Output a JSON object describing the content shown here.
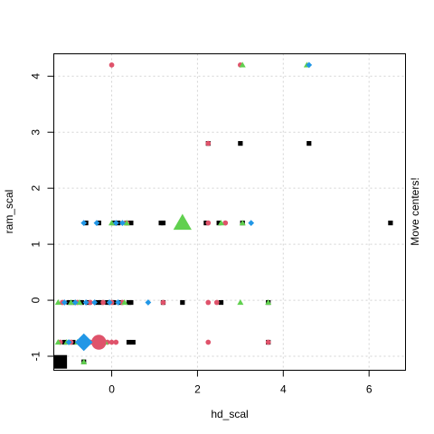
{
  "chart_data": {
    "type": "scatter",
    "xlabel": "hd_scal",
    "ylabel": "ram_scal",
    "xlim": [
      -1.35,
      6.85
    ],
    "ylim": [
      -1.25,
      4.4
    ],
    "xticks": [
      0,
      2,
      4,
      6
    ],
    "yticks": [
      -1,
      0,
      1,
      2,
      3,
      4
    ],
    "xtick_labels": [
      "0",
      "2",
      "4",
      "6"
    ],
    "ytick_labels": [
      "-1",
      "0",
      "1",
      "2",
      "3",
      "4"
    ],
    "grid": true,
    "side_label": "Move centers!",
    "series": [
      {
        "color": "#000000",
        "marker": "square",
        "points": [
          [
            -1.0,
            -0.04
          ],
          [
            -0.9,
            -0.04
          ],
          [
            -0.7,
            -0.04
          ],
          [
            -0.55,
            -0.04
          ],
          [
            -0.35,
            -0.04
          ],
          [
            -0.25,
            -0.04
          ],
          [
            -0.1,
            -0.04
          ],
          [
            0.05,
            -0.04
          ],
          [
            0.2,
            -0.04
          ],
          [
            0.4,
            -0.04
          ],
          [
            0.45,
            -0.04
          ],
          [
            1.2,
            -0.04
          ],
          [
            1.65,
            -0.04
          ],
          [
            2.55,
            -0.04
          ],
          [
            3.65,
            -0.04
          ],
          [
            -1.1,
            -0.75
          ],
          [
            -0.9,
            -0.75
          ],
          [
            -0.7,
            -0.75
          ],
          [
            0.4,
            -0.75
          ],
          [
            0.5,
            -0.75
          ],
          [
            -0.65,
            -1.1
          ],
          [
            -0.6,
            1.38
          ],
          [
            -0.3,
            1.38
          ],
          [
            0.05,
            1.38
          ],
          [
            0.15,
            1.38
          ],
          [
            0.35,
            1.38
          ],
          [
            0.45,
            1.38
          ],
          [
            1.15,
            1.38
          ],
          [
            1.2,
            1.38
          ],
          [
            2.2,
            1.38
          ],
          [
            2.5,
            1.38
          ],
          [
            3.05,
            1.38
          ],
          [
            6.5,
            1.38
          ],
          [
            2.25,
            2.8
          ],
          [
            3.0,
            2.8
          ],
          [
            4.6,
            2.8
          ],
          [
            3.65,
            -0.75
          ]
        ]
      },
      {
        "color": "#df536b",
        "marker": "circle",
        "points": [
          [
            -1.15,
            -0.04
          ],
          [
            -0.8,
            -0.04
          ],
          [
            -0.5,
            -0.04
          ],
          [
            -0.2,
            -0.04
          ],
          [
            0.0,
            -0.04
          ],
          [
            0.25,
            -0.04
          ],
          [
            1.2,
            -0.04
          ],
          [
            2.25,
            -0.04
          ],
          [
            2.45,
            -0.04
          ],
          [
            -1.2,
            -0.75
          ],
          [
            -0.95,
            -0.75
          ],
          [
            -0.75,
            -0.75
          ],
          [
            -0.5,
            -0.75
          ],
          [
            -0.35,
            -0.75
          ],
          [
            -0.1,
            -0.75
          ],
          [
            0.0,
            -0.75
          ],
          [
            0.1,
            -0.75
          ],
          [
            2.25,
            -0.75
          ],
          [
            3.65,
            -0.75
          ],
          [
            0.0,
            4.2
          ],
          [
            3.0,
            4.2
          ],
          [
            2.25,
            2.8
          ],
          [
            2.25,
            1.38
          ],
          [
            2.65,
            1.38
          ],
          [
            0.35,
            1.38
          ]
        ]
      },
      {
        "color": "#61d04f",
        "marker": "triangle",
        "points": [
          [
            -1.25,
            -0.04
          ],
          [
            -0.95,
            -0.04
          ],
          [
            -0.75,
            -0.04
          ],
          [
            0.3,
            -0.04
          ],
          [
            3.0,
            -0.04
          ],
          [
            3.65,
            -0.04
          ],
          [
            -1.25,
            -0.75
          ],
          [
            -1.05,
            -0.75
          ],
          [
            -0.8,
            -0.75
          ],
          [
            -0.15,
            -0.75
          ],
          [
            -0.65,
            -1.1
          ],
          [
            0.0,
            1.38
          ],
          [
            0.35,
            1.38
          ],
          [
            2.55,
            1.38
          ],
          [
            3.05,
            1.38
          ],
          [
            3.05,
            4.2
          ],
          [
            4.55,
            4.2
          ]
        ]
      },
      {
        "color": "#2297e6",
        "marker": "diamond",
        "points": [
          [
            -1.1,
            -0.04
          ],
          [
            -0.85,
            -0.04
          ],
          [
            -0.6,
            -0.04
          ],
          [
            -0.4,
            -0.04
          ],
          [
            -0.05,
            -0.04
          ],
          [
            0.15,
            -0.04
          ],
          [
            0.85,
            -0.04
          ],
          [
            -1.0,
            -0.75
          ],
          [
            -0.6,
            -0.75
          ],
          [
            -0.65,
            1.38
          ],
          [
            -0.35,
            1.38
          ],
          [
            0.1,
            1.38
          ],
          [
            0.25,
            1.38
          ],
          [
            3.25,
            1.38
          ],
          [
            4.6,
            4.2
          ]
        ]
      }
    ],
    "centers": [
      {
        "color": "#000000",
        "marker": "square",
        "x": -1.2,
        "y": -1.1
      },
      {
        "color": "#df536b",
        "marker": "circle",
        "x": -0.3,
        "y": -0.75
      },
      {
        "color": "#61d04f",
        "marker": "triangle",
        "x": 1.65,
        "y": 1.38
      },
      {
        "color": "#2297e6",
        "marker": "diamond",
        "x": -0.65,
        "y": -0.75
      }
    ]
  }
}
